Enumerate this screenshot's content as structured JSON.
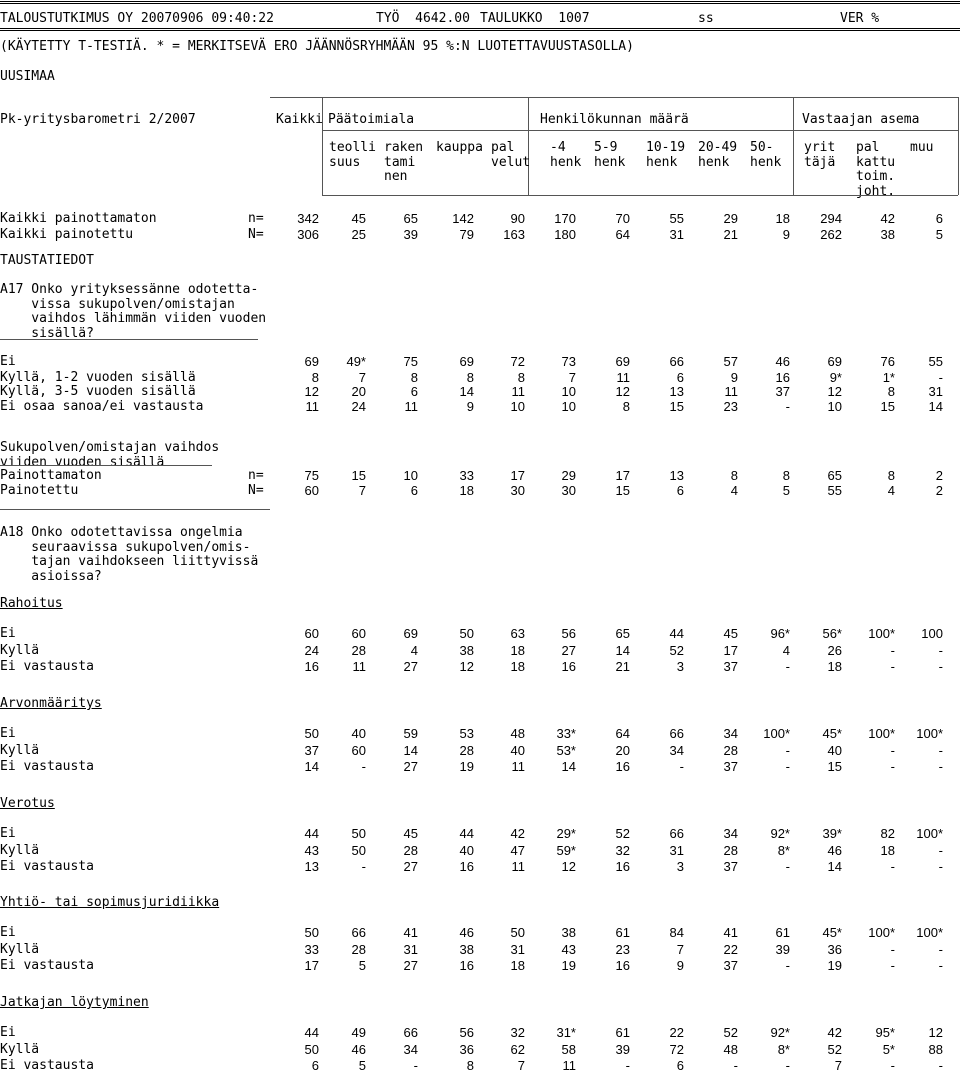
{
  "header": {
    "org": "TALOUSTUTKIMUS OY 20070906 09:40:22",
    "job": "TYÖ  4642.00",
    "table": "TAULUKKO  1007",
    "ss": "ss",
    "ver": "VER %"
  },
  "note": "(KÄYTETTY T-TESTIÄ. * = MERKITSEVÄ ERO JÄÄNNÖSRYHMÄÄN 95 %:N LUOTETTAVUUSTASOLLA)",
  "region": "UUSIMAA",
  "survey": "Pk-yritysbarometri 2/2007",
  "groups": {
    "all": "Kaikki",
    "industry": "Päätoimiala",
    "staff": "Henkilökunnan määrä",
    "role": "Vastaajan asema"
  },
  "col_headers": [
    [
      "teolli",
      "suus"
    ],
    [
      "raken",
      "tami",
      "nen"
    ],
    [
      "kauppa"
    ],
    [
      "pal",
      "velut"
    ],
    [
      "-4",
      "henk"
    ],
    [
      "5-9",
      "henk"
    ],
    [
      "10-19",
      "henk"
    ],
    [
      "20-49",
      "henk"
    ],
    [
      "50-",
      "henk"
    ],
    [
      "yrit",
      "täjä"
    ],
    [
      "pal",
      "kattu",
      "toim.",
      "joht."
    ],
    [
      "muu"
    ]
  ],
  "totals": [
    {
      "label": "Kaikki painottamaton",
      "code": "n=",
      "values": [
        "342",
        "45",
        "65",
        "142",
        "90",
        "170",
        "70",
        "55",
        "29",
        "18",
        "294",
        "42",
        "6"
      ]
    },
    {
      "label": "Kaikki painotettu",
      "code": "N=",
      "values": [
        "306",
        "25",
        "39",
        "79",
        "163",
        "180",
        "64",
        "31",
        "21",
        "9",
        "262",
        "38",
        "5"
      ]
    }
  ],
  "background_label": "TAUSTATIEDOT",
  "q17": {
    "question": [
      "A17 Onko yrityksessänne odotetta-",
      "    vissa sukupolven/omistajan",
      "    vaihdos lähimmän viiden vuoden",
      "    sisällä?"
    ],
    "rows": [
      {
        "label": "Ei",
        "values": [
          "69",
          "49*",
          "75",
          "69",
          "72",
          "73",
          "69",
          "66",
          "57",
          "46",
          "69",
          "76",
          "55"
        ]
      },
      {
        "label": "Kyllä, 1-2 vuoden sisällä",
        "values": [
          "8",
          "7",
          "8",
          "8",
          "8",
          "7",
          "11",
          "6",
          "9",
          "16",
          "9*",
          "1*",
          "-"
        ]
      },
      {
        "label": "Kyllä, 3-5 vuoden sisällä",
        "values": [
          "12",
          "20",
          "6",
          "14",
          "11",
          "10",
          "12",
          "13",
          "11",
          "37",
          "12",
          "8",
          "31"
        ]
      },
      {
        "label": "Ei osaa sanoa/ei vastausta",
        "values": [
          "11",
          "24",
          "11",
          "9",
          "10",
          "10",
          "8",
          "15",
          "23",
          "-",
          "10",
          "15",
          "14"
        ]
      }
    ]
  },
  "subgroup": {
    "title": [
      "Sukupolven/omistajan vaihdos",
      "viiden vuoden sisällä"
    ],
    "rows": [
      {
        "label": "Painottamaton",
        "code": "n=",
        "values": [
          "75",
          "15",
          "10",
          "33",
          "17",
          "29",
          "17",
          "13",
          "8",
          "8",
          "65",
          "8",
          "2"
        ]
      },
      {
        "label": "Painotettu",
        "code": "N=",
        "values": [
          "60",
          "7",
          "6",
          "18",
          "30",
          "30",
          "15",
          "6",
          "4",
          "5",
          "55",
          "4",
          "2"
        ]
      }
    ]
  },
  "q18": {
    "question": [
      "A18 Onko odotettavissa ongelmia",
      "    seuraavissa sukupolven/omis-",
      "    tajan vaihdokseen liittyvissä",
      "    asioissa?"
    ],
    "sections": [
      {
        "title": "Rahoitus",
        "rows": [
          {
            "label": "Ei",
            "values": [
              "60",
              "60",
              "69",
              "50",
              "63",
              "56",
              "65",
              "44",
              "45",
              "96*",
              "56*",
              "100*",
              "100"
            ]
          },
          {
            "label": "Kyllä",
            "values": [
              "24",
              "28",
              "4",
              "38",
              "18",
              "27",
              "14",
              "52",
              "17",
              "4",
              "26",
              "-",
              "-"
            ]
          },
          {
            "label": "Ei vastausta",
            "values": [
              "16",
              "11",
              "27",
              "12",
              "18",
              "16",
              "21",
              "3",
              "37",
              "-",
              "18",
              "-",
              "-"
            ]
          }
        ]
      },
      {
        "title": "Arvonmääritys",
        "rows": [
          {
            "label": "Ei",
            "values": [
              "50",
              "40",
              "59",
              "53",
              "48",
              "33*",
              "64",
              "66",
              "34",
              "100*",
              "45*",
              "100*",
              "100*"
            ]
          },
          {
            "label": "Kyllä",
            "values": [
              "37",
              "60",
              "14",
              "28",
              "40",
              "53*",
              "20",
              "34",
              "28",
              "-",
              "40",
              "-",
              "-"
            ]
          },
          {
            "label": "Ei vastausta",
            "values": [
              "14",
              "-",
              "27",
              "19",
              "11",
              "14",
              "16",
              "-",
              "37",
              "-",
              "15",
              "-",
              "-"
            ]
          }
        ]
      },
      {
        "title": "Verotus",
        "rows": [
          {
            "label": "Ei",
            "values": [
              "44",
              "50",
              "45",
              "44",
              "42",
              "29*",
              "52",
              "66",
              "34",
              "92*",
              "39*",
              "82",
              "100*"
            ]
          },
          {
            "label": "Kyllä",
            "values": [
              "43",
              "50",
              "28",
              "40",
              "47",
              "59*",
              "32",
              "31",
              "28",
              "8*",
              "46",
              "18",
              "-"
            ]
          },
          {
            "label": "Ei vastausta",
            "values": [
              "13",
              "-",
              "27",
              "16",
              "11",
              "12",
              "16",
              "3",
              "37",
              "-",
              "14",
              "-",
              "-"
            ]
          }
        ]
      },
      {
        "title": "Yhtiö- tai sopimusjuridiikka",
        "rows": [
          {
            "label": "Ei",
            "values": [
              "50",
              "66",
              "41",
              "46",
              "50",
              "38",
              "61",
              "84",
              "41",
              "61",
              "45*",
              "100*",
              "100*"
            ]
          },
          {
            "label": "Kyllä",
            "values": [
              "33",
              "28",
              "31",
              "38",
              "31",
              "43",
              "23",
              "7",
              "22",
              "39",
              "36",
              "-",
              "-"
            ]
          },
          {
            "label": "Ei vastausta",
            "values": [
              "17",
              "5",
              "27",
              "16",
              "18",
              "19",
              "16",
              "9",
              "37",
              "-",
              "19",
              "-",
              "-"
            ]
          }
        ]
      },
      {
        "title": "Jatkajan löytyminen",
        "rows": [
          {
            "label": "Ei",
            "values": [
              "44",
              "49",
              "66",
              "56",
              "32",
              "31*",
              "61",
              "22",
              "52",
              "92*",
              "42",
              "95*",
              "12"
            ]
          },
          {
            "label": "Kyllä",
            "values": [
              "50",
              "46",
              "34",
              "36",
              "62",
              "58",
              "39",
              "72",
              "48",
              "8*",
              "52",
              "5*",
              "88"
            ]
          },
          {
            "label": "Ei vastausta",
            "values": [
              "6",
              "5",
              "-",
              "8",
              "7",
              "11",
              "-",
              "6",
              "-",
              "-",
              "7",
              "-",
              "-"
            ]
          }
        ]
      }
    ]
  }
}
